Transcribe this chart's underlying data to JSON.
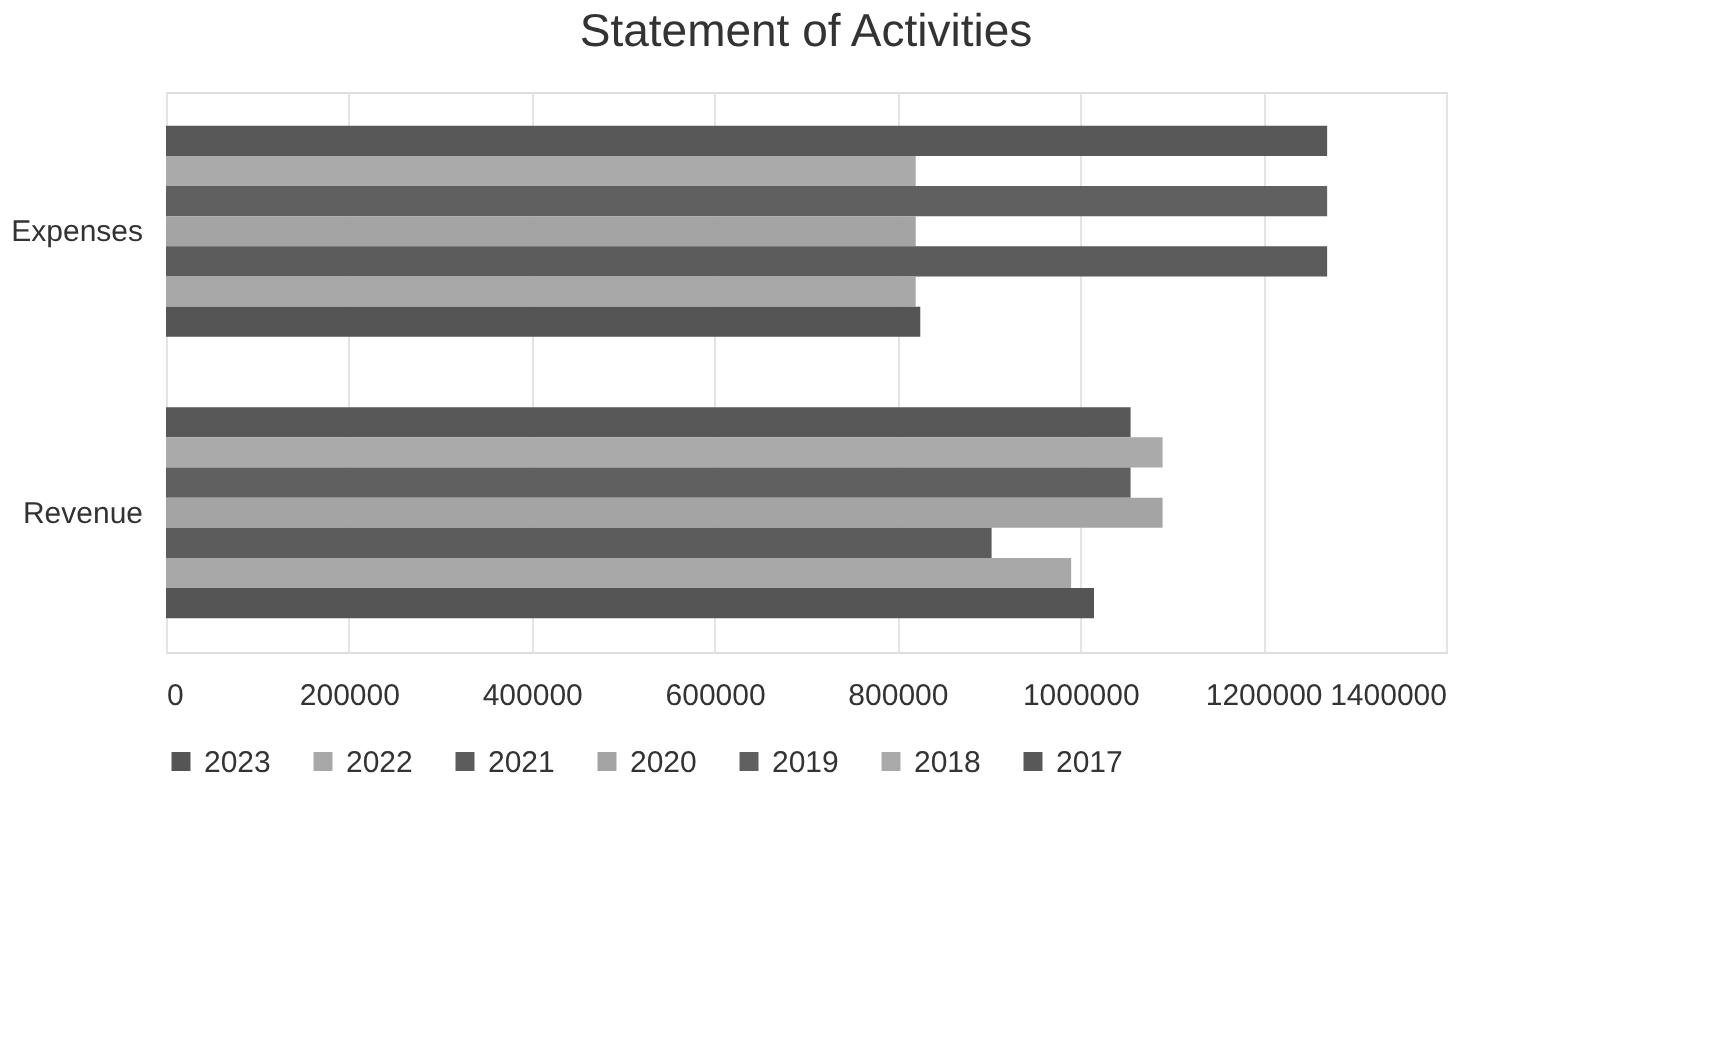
{
  "chart_data": {
    "type": "bar",
    "orientation": "horizontal",
    "title": "Statement of Activities",
    "categories": [
      "Expenses",
      "Revenue"
    ],
    "series": [
      {
        "name": "2017",
        "color": "#585858",
        "values": [
          1270000,
          1055000
        ]
      },
      {
        "name": "2018",
        "color": "#aaaaaa",
        "values": [
          820000,
          1090000
        ]
      },
      {
        "name": "2019",
        "color": "#606060",
        "values": [
          1270000,
          1055000
        ]
      },
      {
        "name": "2020",
        "color": "#a4a4a4",
        "values": [
          820000,
          1090000
        ]
      },
      {
        "name": "2021",
        "color": "#5c5c5c",
        "values": [
          1270000,
          903000
        ]
      },
      {
        "name": "2022",
        "color": "#a8a8a8",
        "values": [
          820000,
          990000
        ]
      },
      {
        "name": "2023",
        "color": "#555555",
        "values": [
          825000,
          1015000
        ]
      }
    ],
    "xlim": [
      0,
      1400000
    ],
    "xticks": [
      0,
      200000,
      400000,
      600000,
      800000,
      1000000,
      1200000,
      1400000
    ],
    "grid": "x",
    "legend": "bottom"
  }
}
